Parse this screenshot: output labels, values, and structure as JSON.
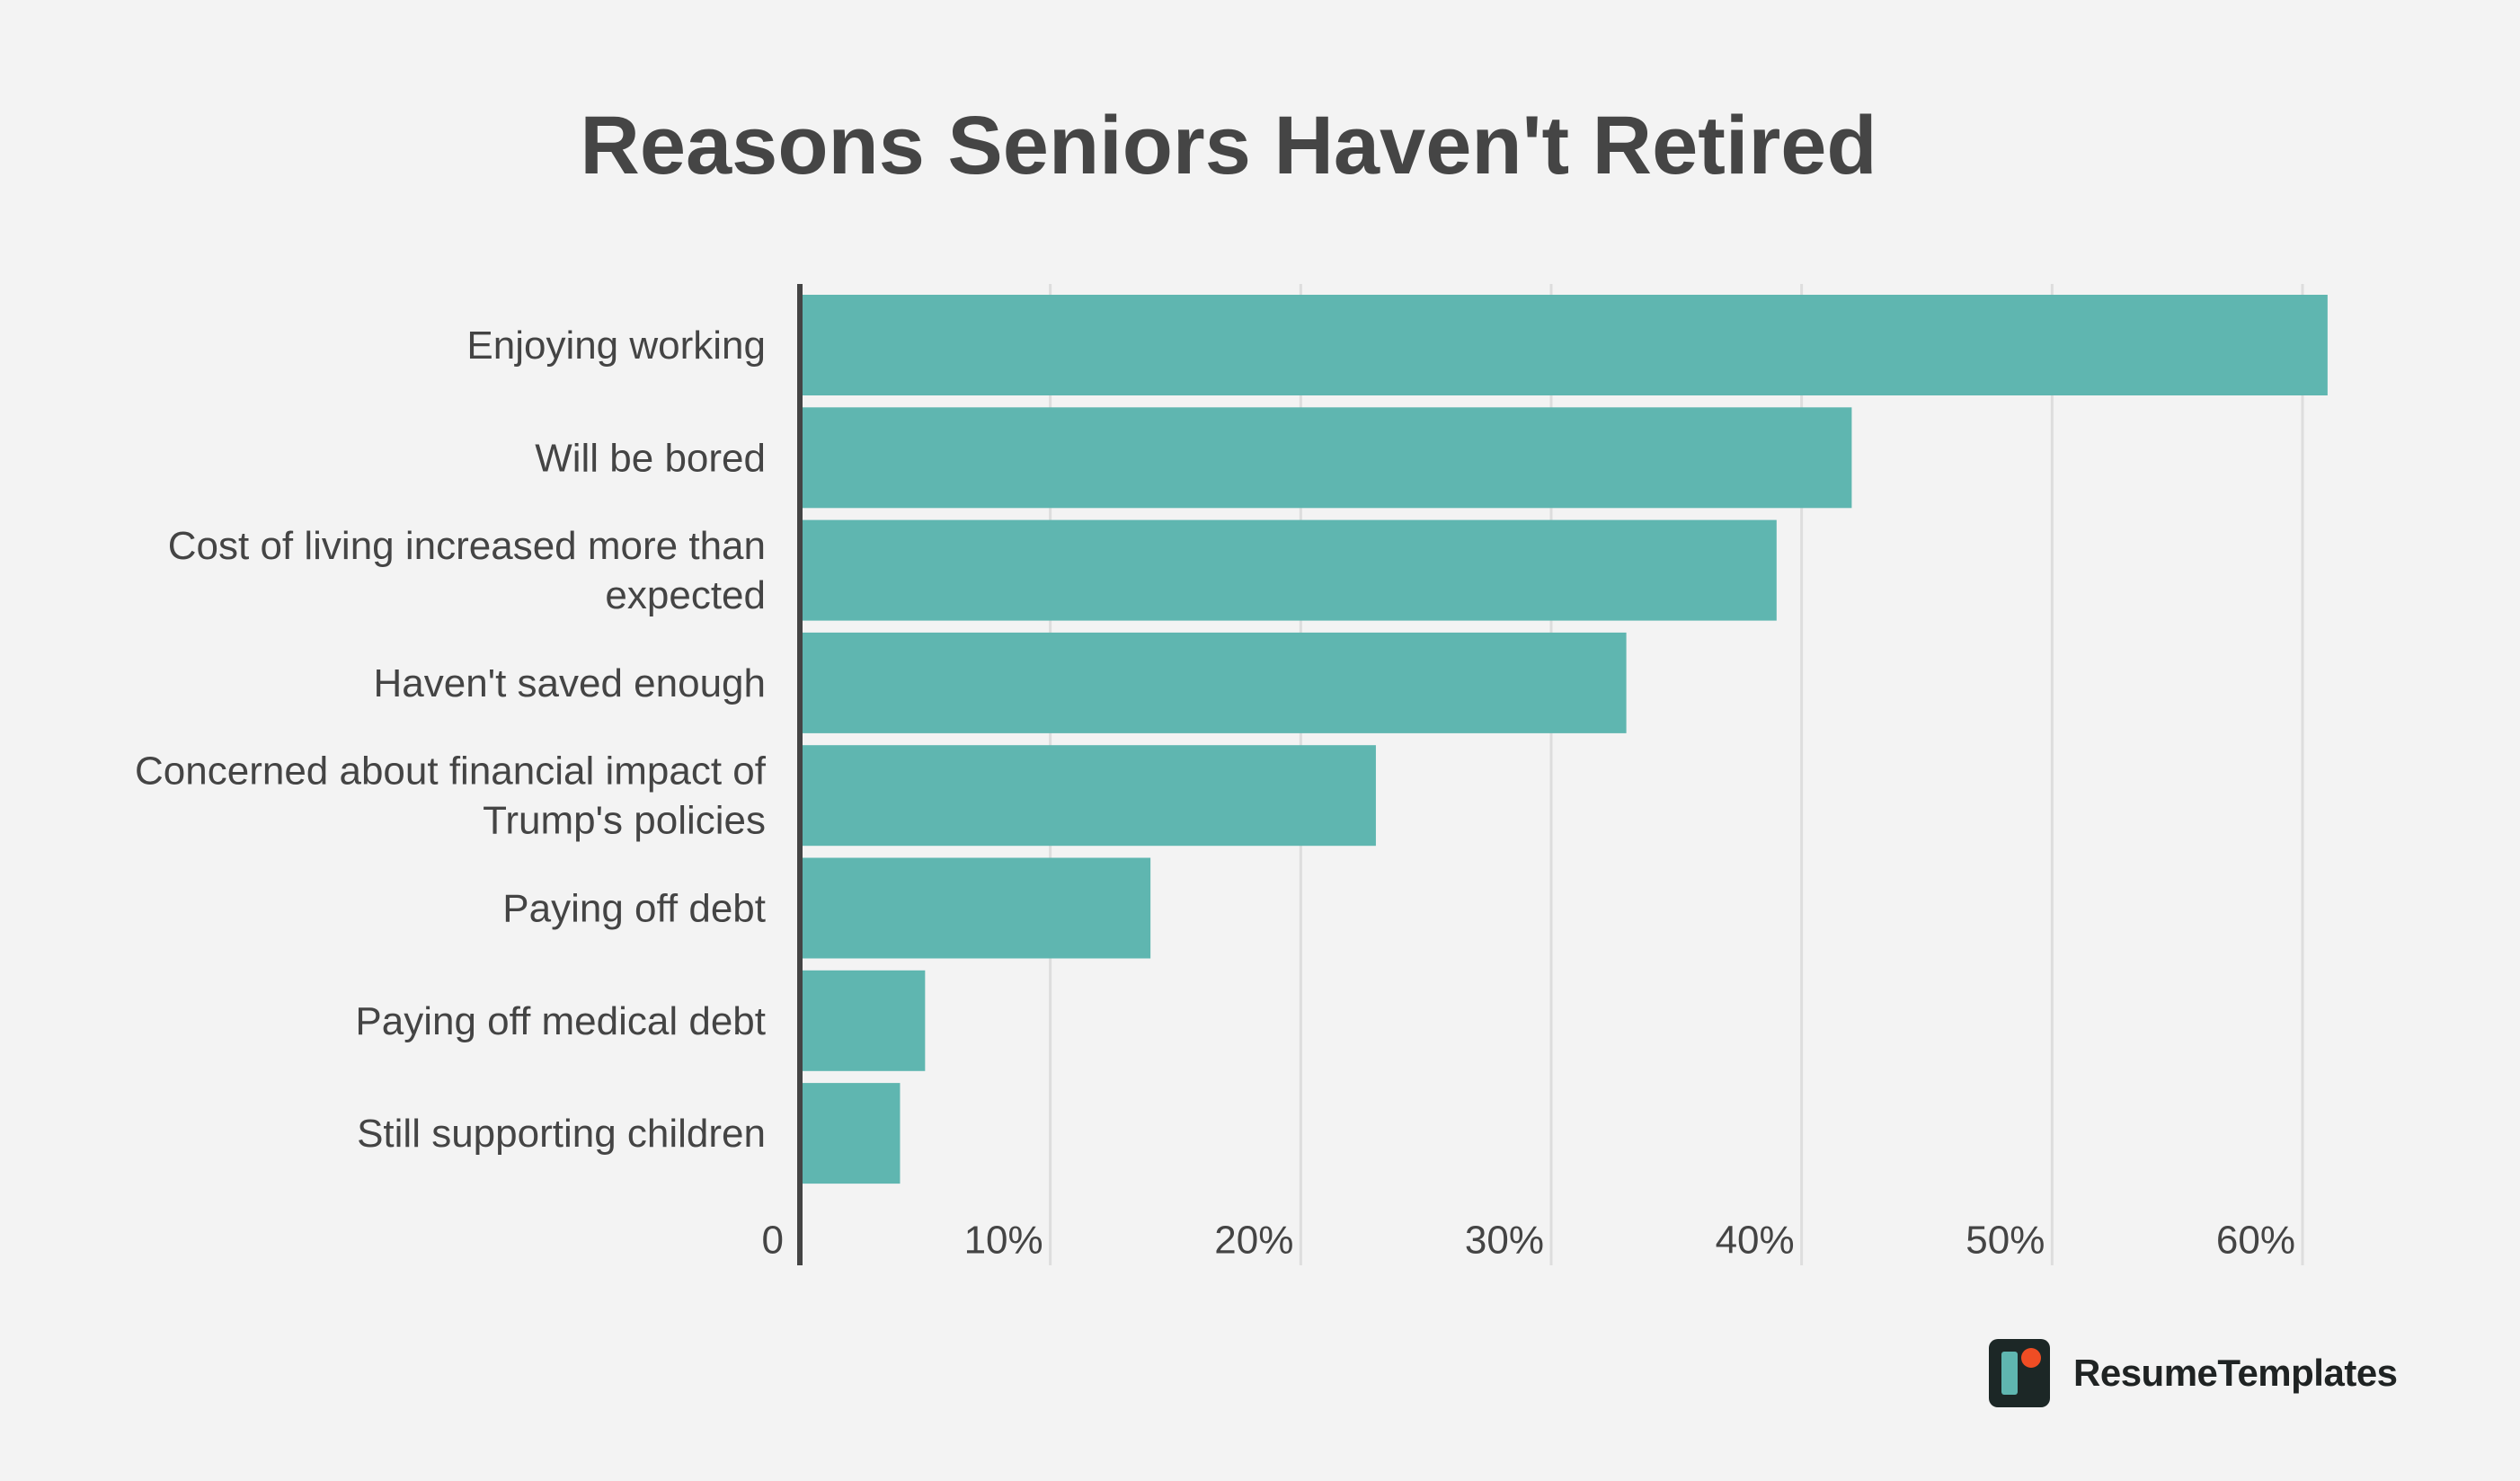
{
  "chart_data": {
    "type": "bar",
    "orientation": "horizontal",
    "title": "Reasons Seniors Haven't Retired",
    "categories": [
      [
        "Enjoying working"
      ],
      [
        "Will be bored"
      ],
      [
        "Cost of living increased more than",
        "expected"
      ],
      [
        "Haven't saved enough"
      ],
      [
        "Concerned about financial impact of",
        "Trump's policies"
      ],
      [
        "Paying off debt"
      ],
      [
        "Paying off medical debt"
      ],
      [
        "Still supporting children"
      ]
    ],
    "values": [
      61,
      42,
      39,
      33,
      23,
      14,
      5,
      4
    ],
    "xlim": [
      0,
      60
    ],
    "x_ticks": [
      0,
      10,
      20,
      30,
      40,
      50,
      60
    ],
    "x_tick_labels": [
      "0",
      "10%",
      "20%",
      "30%",
      "40%",
      "50%",
      "60%"
    ],
    "xlabel": "",
    "ylabel": "",
    "grid": "vertical",
    "bar_color": "#5fb6b0",
    "axis_color": "#444444",
    "grid_color": "#dddddd"
  },
  "brand": {
    "name": "ResumeTemplates",
    "logo_icon": "resume-templates-logo-icon"
  }
}
